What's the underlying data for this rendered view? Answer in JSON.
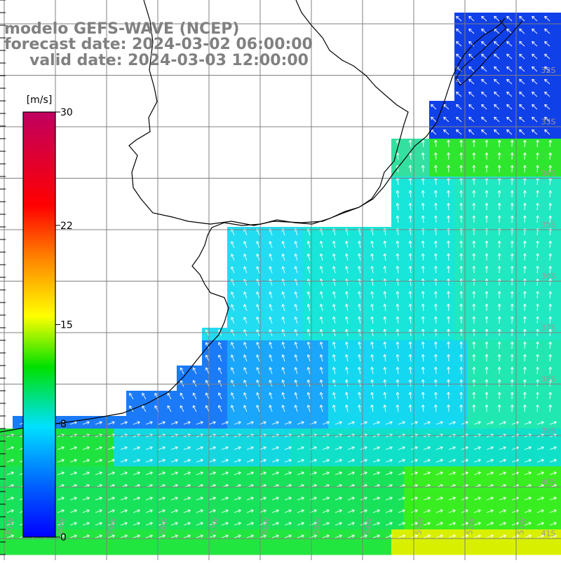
{
  "header": {
    "line1": "modelo GEFS-WAVE (NCEP)",
    "line2": "forecast date: 2024-03-02 06:00:00",
    "line3": "valid date: 2024-03-03 12:00:00"
  },
  "legend": {
    "unit": "[m/s]",
    "ticks": [
      {
        "value": 30,
        "label": "30"
      },
      {
        "value": 22,
        "label": "22"
      },
      {
        "value": 15,
        "label": "15"
      },
      {
        "value": 8,
        "label": "8"
      },
      {
        "value": 0,
        "label": "0"
      }
    ],
    "range": [
      0,
      30
    ],
    "color_stops": [
      "#0000ff",
      "#0060ff",
      "#00e0ff",
      "#00e000",
      "#ffff00",
      "#ff8000",
      "#ff0000",
      "#c00060"
    ]
  },
  "map": {
    "lat_labels": [
      "32S",
      "33S",
      "34S",
      "35S",
      "36S",
      "37S",
      "38S",
      "39S",
      "40S",
      "41S"
    ],
    "lon_labels": [
      "61W",
      "60W",
      "59W",
      "58W",
      "57W",
      "56W",
      "55W",
      "54W",
      "53W",
      "52W",
      "51W"
    ],
    "grid_color": "#808080",
    "coast_color": "#000000",
    "arrow_color": "#ffffff",
    "field": "wind speed and direction"
  }
}
